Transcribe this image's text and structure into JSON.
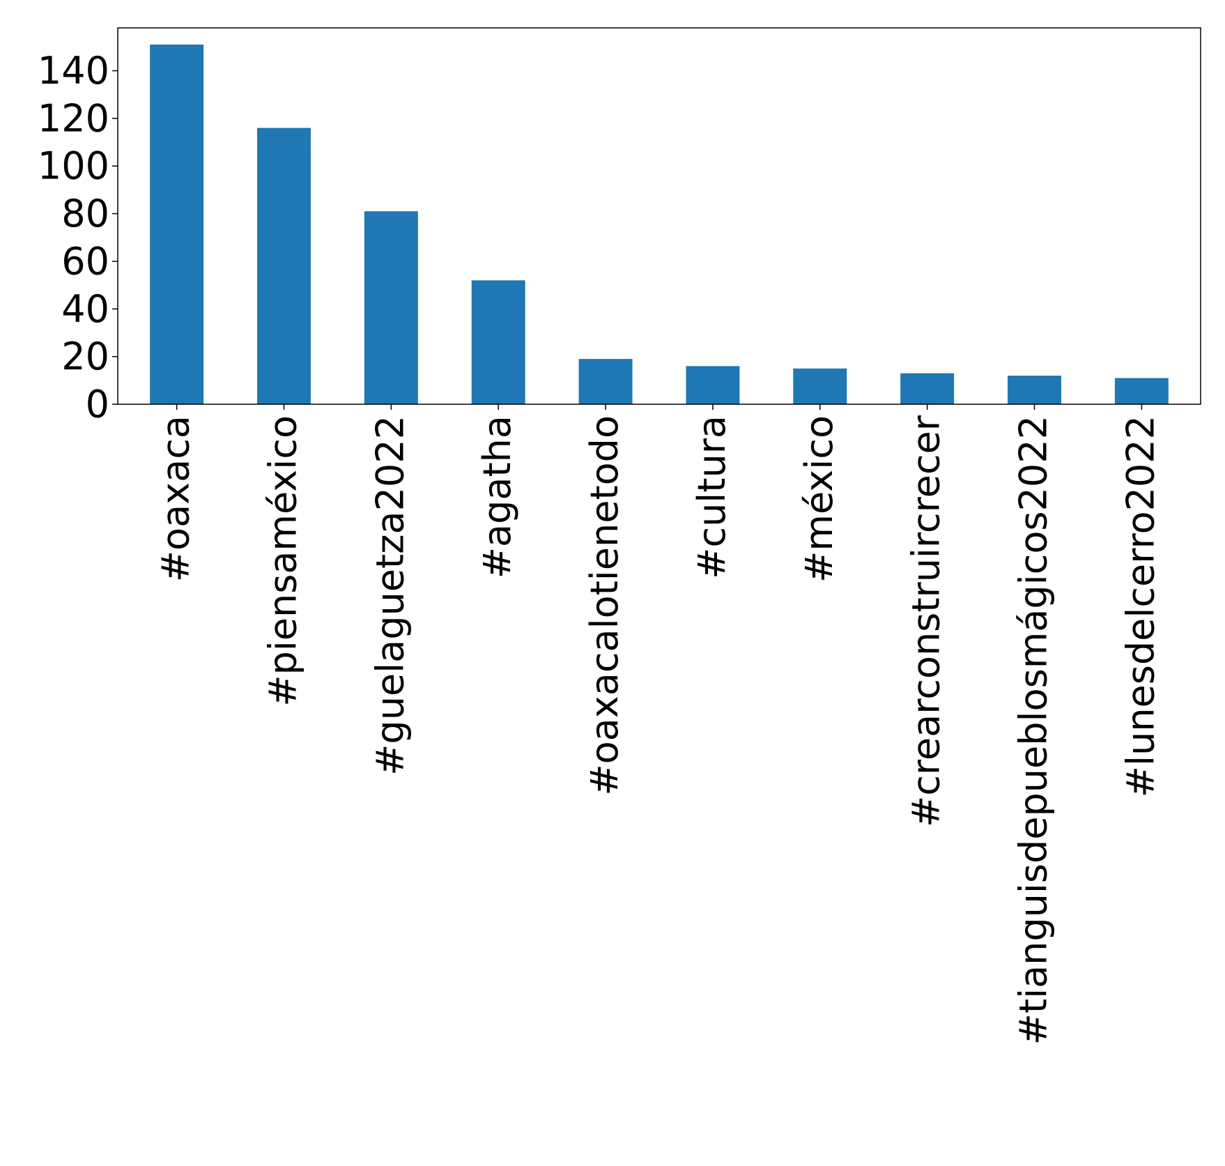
{
  "chart_data": {
    "type": "bar",
    "title": "",
    "xlabel": "",
    "ylabel": "",
    "categories": [
      "#oaxaca",
      "#piensaméxico",
      "#guelaguetza2022",
      "#agatha",
      "#oaxacalotienetodo",
      "#cultura",
      "#méxico",
      "#crearconstruircrecer",
      "#tianguisdepueblosmágicos2022",
      "#lunesdelcerro2022"
    ],
    "values": [
      151,
      116,
      81,
      52,
      19,
      16,
      15,
      13,
      12,
      11
    ],
    "ylim": [
      0,
      158
    ],
    "yticks": [
      0,
      20,
      40,
      60,
      80,
      100,
      120,
      140
    ],
    "bar_color": "#1f77b4",
    "grid": false,
    "legend": "none"
  }
}
